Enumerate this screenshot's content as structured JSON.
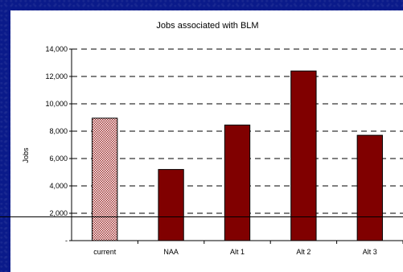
{
  "chart_data": {
    "type": "bar",
    "title": "Jobs associated with BLM",
    "xlabel": "",
    "ylabel": "Jobs",
    "categories": [
      "current",
      "NAA",
      "Alt 1",
      "Alt 2",
      "Alt 3"
    ],
    "values": [
      8950,
      5200,
      8450,
      12400,
      7700
    ],
    "ylim": [
      0,
      14000
    ],
    "yticks": [
      0,
      2000,
      4000,
      6000,
      8000,
      10000,
      12000,
      14000
    ],
    "ytick_labels": [
      "-",
      "2,000",
      "4,000",
      "6,000",
      "8,000",
      "10,000",
      "12,000",
      "14,000"
    ],
    "grid": "dashed horizontal",
    "colors": {
      "bar": "#800000",
      "highlight_bar": "#c05050",
      "highlight_category": "current",
      "background": "#0a1a8a"
    }
  }
}
